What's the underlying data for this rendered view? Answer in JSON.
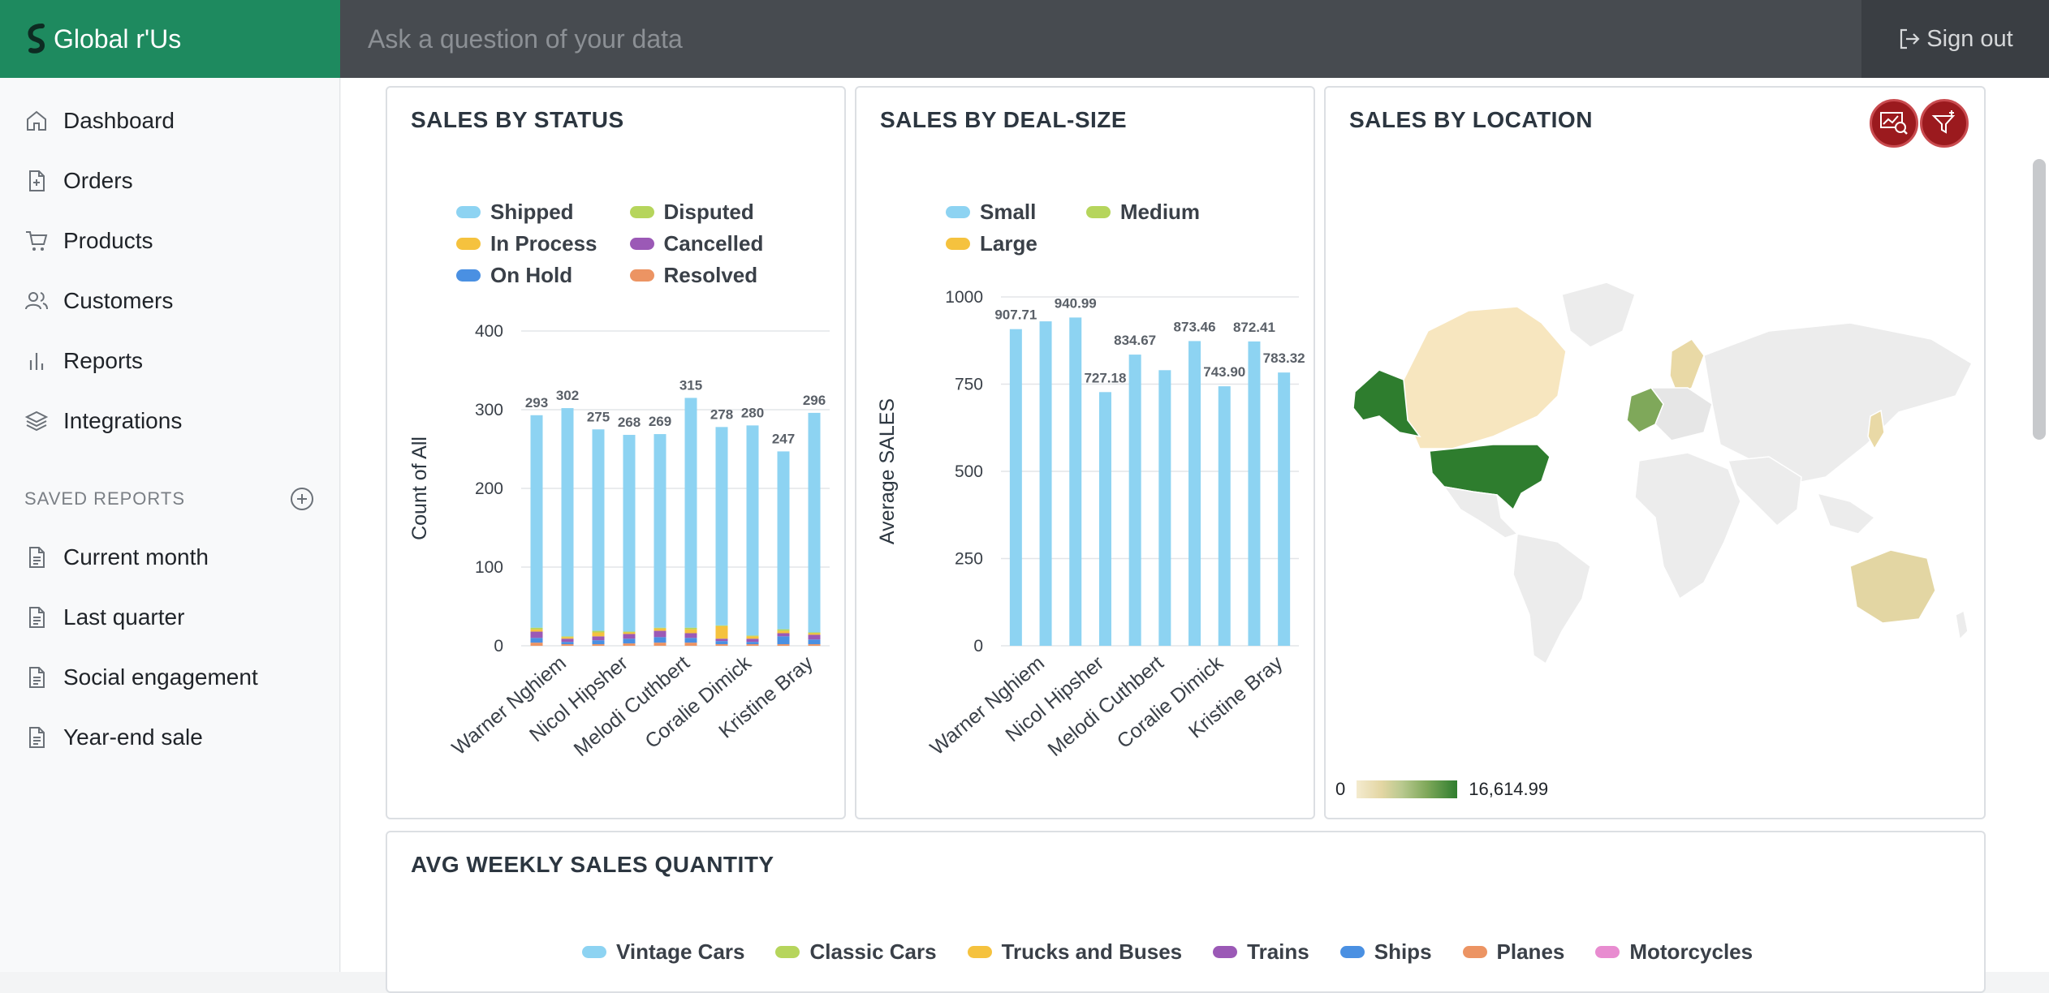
{
  "app": {
    "name": "Global r'Us"
  },
  "search": {
    "placeholder": "Ask a question of your data"
  },
  "header": {
    "signout_label": "Sign out"
  },
  "sidebar": {
    "items": [
      {
        "label": "Dashboard",
        "icon": "home-icon"
      },
      {
        "label": "Orders",
        "icon": "file-plus-icon"
      },
      {
        "label": "Products",
        "icon": "cart-icon"
      },
      {
        "label": "Customers",
        "icon": "users-icon"
      },
      {
        "label": "Reports",
        "icon": "bar-chart-icon"
      },
      {
        "label": "Integrations",
        "icon": "layers-icon"
      }
    ],
    "saved_heading": "SAVED REPORTS",
    "saved": [
      {
        "label": "Current month"
      },
      {
        "label": "Last quarter"
      },
      {
        "label": "Social engagement"
      },
      {
        "label": "Year-end sale"
      }
    ]
  },
  "colors": {
    "brand": "#1e8a5f",
    "topbar": "#474b50",
    "shipped": "#8dd3f2",
    "disputed": "#b6d55c",
    "in_process": "#f5c23e",
    "cancelled": "#9b59b6",
    "on_hold": "#4a90e2",
    "resolved": "#ec9463",
    "motorcycles": "#e88cd0"
  },
  "cards": {
    "status": {
      "title": "SALES BY STATUS"
    },
    "dealsize": {
      "title": "SALES BY DEAL-SIZE"
    },
    "location": {
      "title": "SALES BY LOCATION",
      "scale_min": "0",
      "scale_max": "16,614.99"
    },
    "weekly": {
      "title": "AVG WEEKLY SALES QUANTITY",
      "legend": [
        {
          "name": "Vintage Cars",
          "color": "#8dd3f2"
        },
        {
          "name": "Classic Cars",
          "color": "#b6d55c"
        },
        {
          "name": "Trucks and Buses",
          "color": "#f5c23e"
        },
        {
          "name": "Trains",
          "color": "#9b59b6"
        },
        {
          "name": "Ships",
          "color": "#4a90e2"
        },
        {
          "name": "Planes",
          "color": "#ec9463"
        },
        {
          "name": "Motorcycles",
          "color": "#e88cd0"
        }
      ]
    }
  },
  "chart_data": [
    {
      "type": "bar",
      "title": "SALES BY STATUS",
      "ylabel": "Count of All",
      "ylim": [
        0,
        400
      ],
      "yticks": [
        0,
        100,
        200,
        300,
        400
      ],
      "x_tick_labels": [
        "Warner Nghiem",
        "Nicol Hipsher",
        "Melodi Cuthbert",
        "Coralie Dimick",
        "Kristine Bray"
      ],
      "totals": [
        293,
        302,
        275,
        268,
        269,
        315,
        278,
        280,
        247,
        296
      ],
      "series": [
        {
          "name": "Shipped",
          "color": "#8dd3f2",
          "values": [
            270,
            290,
            256,
            250,
            246,
            292,
            252,
            267,
            226,
            279
          ]
        },
        {
          "name": "Disputed",
          "color": "#b6d55c",
          "values": [
            2,
            1,
            2,
            1,
            1,
            2,
            1,
            1,
            2,
            1
          ]
        },
        {
          "name": "In Process",
          "color": "#f5c23e",
          "values": [
            3,
            2,
            5,
            2,
            3,
            5,
            16,
            3,
            3,
            2
          ]
        },
        {
          "name": "Cancelled",
          "color": "#9b59b6",
          "values": [
            8,
            4,
            5,
            6,
            8,
            6,
            3,
            4,
            4,
            6
          ]
        },
        {
          "name": "On Hold",
          "color": "#4a90e2",
          "values": [
            6,
            3,
            5,
            6,
            7,
            6,
            4,
            3,
            10,
            6
          ]
        },
        {
          "name": "Resolved",
          "color": "#ec9463",
          "values": [
            4,
            2,
            2,
            3,
            4,
            4,
            2,
            2,
            2,
            2
          ]
        }
      ],
      "legend_position": "top"
    },
    {
      "type": "bar",
      "title": "SALES BY DEAL-SIZE",
      "ylabel": "Average SALES",
      "ylim": [
        0,
        1000
      ],
      "yticks": [
        0,
        250,
        500,
        750,
        1000
      ],
      "x_tick_labels": [
        "Warner Nghiem",
        "Nicol Hipsher",
        "Melodi Cuthbert",
        "Coralie Dimick",
        "Kristine Bray"
      ],
      "values": [
        907.71,
        930,
        940.99,
        727.18,
        834.67,
        790,
        873.46,
        743.9,
        872.41,
        783.32
      ],
      "labels": [
        "907.71",
        "",
        "940.99",
        "727.18",
        "834.67",
        "",
        "873.46",
        "743.90",
        "872.41",
        "783.32"
      ],
      "series_legend": [
        {
          "name": "Small",
          "color": "#8dd3f2"
        },
        {
          "name": "Medium",
          "color": "#b6d55c"
        },
        {
          "name": "Large",
          "color": "#f5c23e"
        }
      ],
      "legend_position": "top"
    }
  ]
}
